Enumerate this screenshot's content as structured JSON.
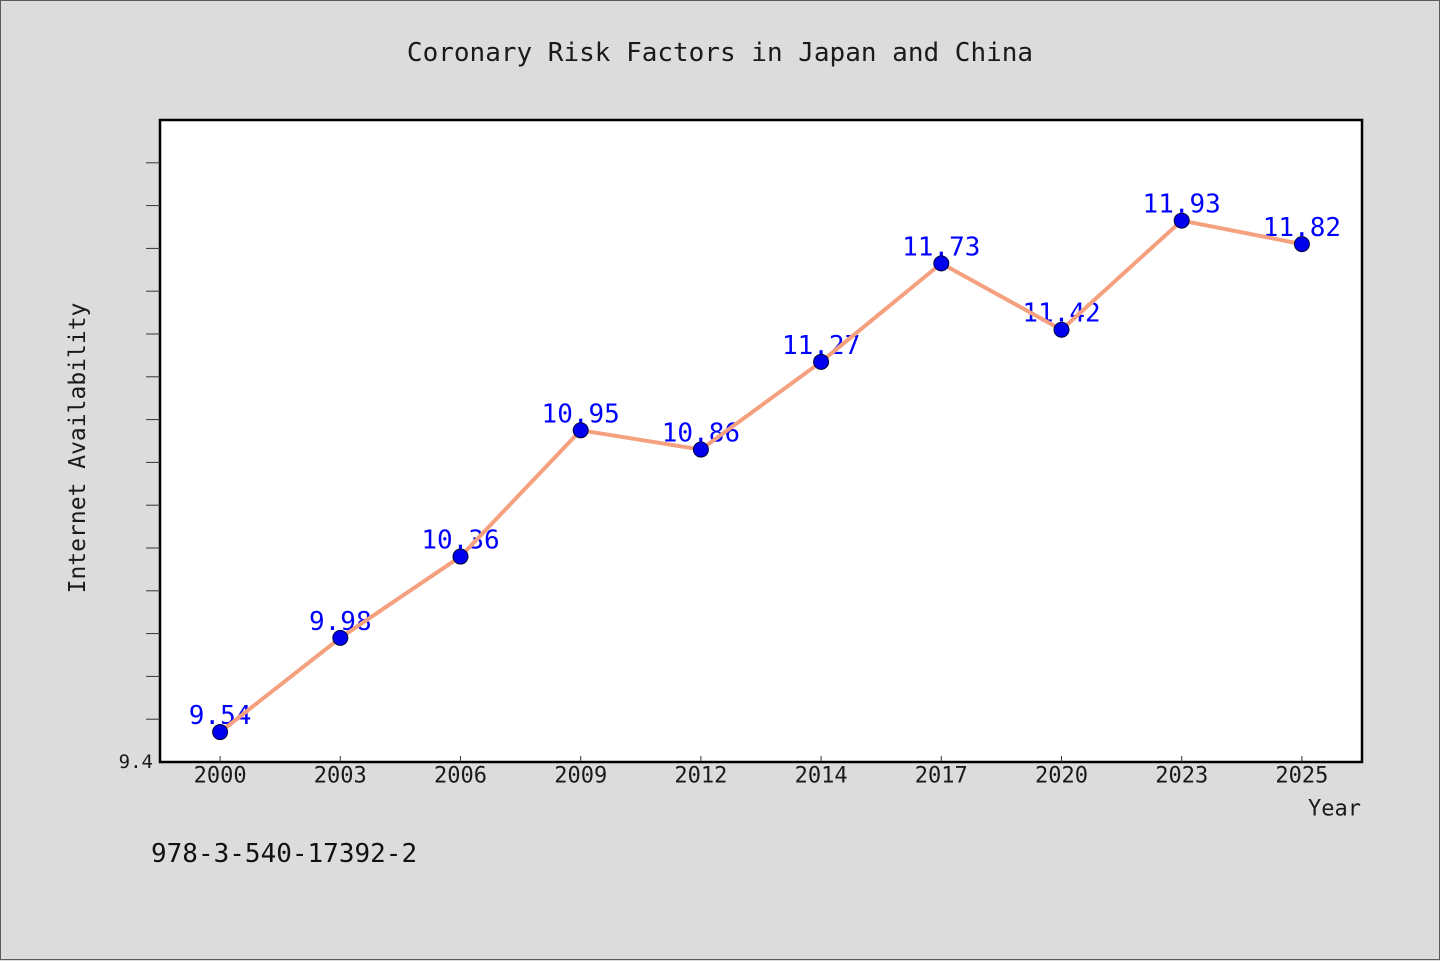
{
  "chart_data": {
    "type": "line",
    "title": "Coronary Risk Factors in Japan and China",
    "xlabel": "Year",
    "ylabel": "Internet Availability",
    "categories": [
      "2000",
      "2003",
      "2006",
      "2009",
      "2012",
      "2014",
      "2017",
      "2020",
      "2023",
      "2025"
    ],
    "series": [
      {
        "values": [
          9.54,
          9.98,
          10.36,
          10.95,
          10.86,
          11.27,
          11.73,
          11.42,
          11.93,
          11.82
        ]
      }
    ],
    "ylim": [
      9.4,
      12.4
    ],
    "y_tick_step": 0.2,
    "y_tick_labels": [
      "9.4"
    ],
    "grid": false,
    "legend": "none",
    "line_color": "#f5a07e",
    "marker_color": "#0000ee",
    "label_color": "#0000ff"
  },
  "footer_text": "978-3-540-17392-2",
  "colors": {
    "background": "#dcdcdc",
    "plot_background": "#ffffff",
    "axis": "#000000"
  }
}
